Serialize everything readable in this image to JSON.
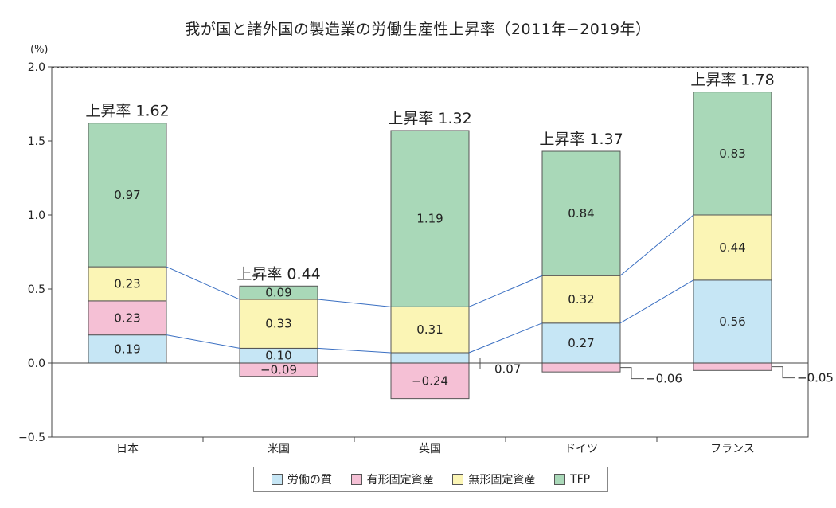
{
  "chart_data": {
    "type": "bar",
    "stacked": true,
    "title": "我が国と諸外国の製造業の労働生産性上昇率（2011年−2019年）",
    "ylabel": "(%)",
    "ylim": [
      -0.5,
      2.0
    ],
    "yticks": [
      "−0.5",
      "0.0",
      "0.5",
      "1.0",
      "1.5",
      "2.0"
    ],
    "ytick_values": [
      -0.5,
      0.0,
      0.5,
      1.0,
      1.5,
      2.0
    ],
    "categories": [
      "日本",
      "米国",
      "英国",
      "ドイツ",
      "フランス"
    ],
    "series": [
      {
        "name": "労働の質",
        "color": "#c6e6f5",
        "values": [
          0.19,
          0.1,
          0.07,
          0.27,
          0.56
        ],
        "labels": [
          "0.19",
          "0.10",
          "0.07",
          "0.27",
          "0.56"
        ]
      },
      {
        "name": "有形固定資産",
        "color": "#f5c0d5",
        "values": [
          0.23,
          -0.09,
          -0.24,
          -0.06,
          -0.05
        ],
        "labels": [
          "0.23",
          "−0.09",
          "−0.24",
          "−0.06",
          "−0.05"
        ]
      },
      {
        "name": "無形固定資産",
        "color": "#fbf5b5",
        "values": [
          0.23,
          0.33,
          0.31,
          0.32,
          0.44
        ],
        "labels": [
          "0.23",
          "0.33",
          "0.31",
          "0.32",
          "0.44"
        ]
      },
      {
        "name": "TFP",
        "color": "#a9d8b8",
        "values": [
          0.97,
          0.09,
          1.19,
          0.84,
          0.83
        ],
        "labels": [
          "0.97",
          "0.09",
          "1.19",
          "0.84",
          "0.83"
        ]
      }
    ],
    "totals": [
      "上昇率 1.62",
      "上昇率 0.44",
      "上昇率 1.32",
      "上昇率 1.37",
      "上昇率 1.78"
    ],
    "legend_position": "bottom-center"
  }
}
